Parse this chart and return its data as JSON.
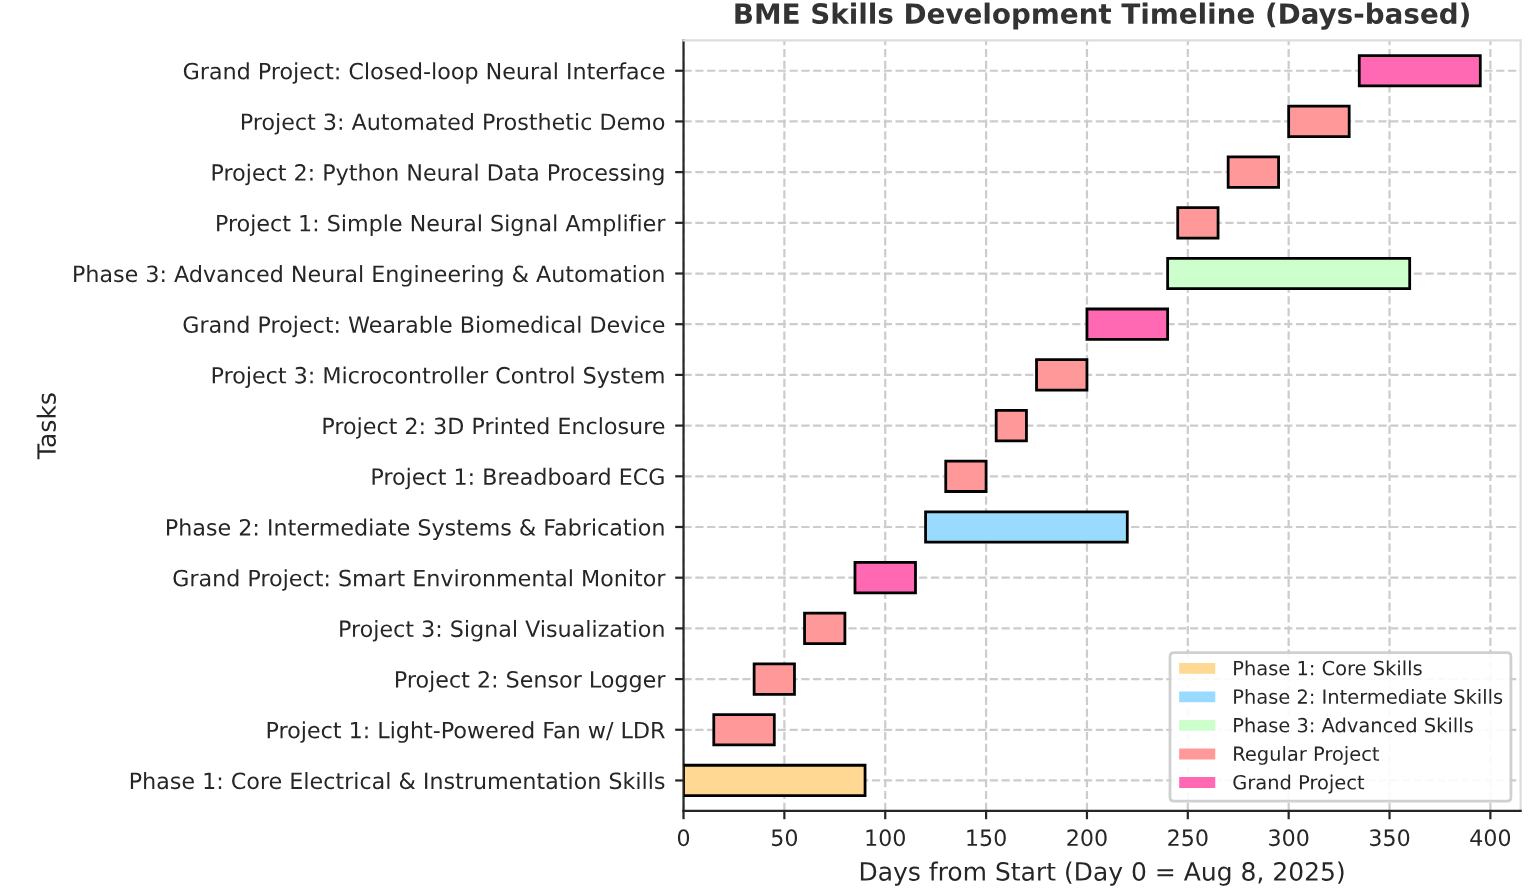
{
  "chart_data": {
    "type": "bar",
    "orientation": "horizontal",
    "title": "BME Skills Development Timeline (Days-based)",
    "xlabel": "Days from Start (Day 0 = Aug 8, 2025)",
    "ylabel": "Tasks",
    "categories": [
      "Grand Project: Closed-loop Neural Interface",
      "Project 3: Automated Prosthetic Demo",
      "Project 2: Python Neural Data Processing",
      "Project 1: Simple Neural Signal Amplifier",
      "Phase 3: Advanced Neural Engineering & Automation",
      "Grand Project: Wearable Biomedical Device",
      "Project 3: Microcontroller Control System",
      "Project 2: 3D Printed Enclosure",
      "Project 1: Breadboard ECG",
      "Phase 2: Intermediate Systems & Fabrication",
      "Grand Project: Smart Environmental Monitor",
      "Project 3: Signal Visualization",
      "Project 2: Sensor Logger",
      "Project 1: Light-Powered Fan w/ LDR",
      "Phase 1: Core Electrical & Instrumentation Skills"
    ],
    "series": [
      {
        "name": "Phase 1: Core Skills",
        "color": "#ffd993",
        "values": [
          null,
          null,
          null,
          null,
          null,
          null,
          null,
          null,
          null,
          null,
          null,
          null,
          null,
          null,
          90
        ],
        "base": [
          null,
          null,
          null,
          null,
          null,
          null,
          null,
          null,
          null,
          null,
          null,
          null,
          null,
          null,
          0
        ]
      },
      {
        "name": "Phase 2: Intermediate Skills",
        "color": "#99dbff",
        "values": [
          null,
          null,
          null,
          null,
          null,
          null,
          null,
          null,
          null,
          100,
          null,
          null,
          null,
          null,
          null
        ],
        "base": [
          null,
          null,
          null,
          null,
          null,
          null,
          null,
          null,
          null,
          120,
          null,
          null,
          null,
          null,
          null
        ]
      },
      {
        "name": "Phase 3: Advanced Skills",
        "color": "#ccffcc",
        "values": [
          null,
          null,
          null,
          null,
          120,
          null,
          null,
          null,
          null,
          null,
          null,
          null,
          null,
          null,
          null
        ],
        "base": [
          null,
          null,
          null,
          null,
          240,
          null,
          null,
          null,
          null,
          null,
          null,
          null,
          null,
          null,
          null
        ]
      },
      {
        "name": "Regular Project",
        "color": "#ff9999",
        "values": [
          null,
          30,
          25,
          20,
          null,
          null,
          25,
          15,
          20,
          null,
          null,
          20,
          20,
          30,
          null
        ],
        "base": [
          null,
          300,
          270,
          245,
          null,
          null,
          175,
          155,
          130,
          null,
          null,
          60,
          35,
          15,
          null
        ]
      },
      {
        "name": "Grand Project",
        "color": "#ff69b4",
        "values": [
          60,
          null,
          null,
          null,
          null,
          40,
          null,
          null,
          null,
          null,
          30,
          null,
          null,
          null,
          null
        ],
        "base": [
          335,
          null,
          null,
          null,
          null,
          200,
          null,
          null,
          null,
          null,
          85,
          null,
          null,
          null,
          null
        ]
      }
    ],
    "xlim": [
      0,
      415
    ],
    "xticks": [
      0,
      50,
      100,
      150,
      200,
      250,
      300,
      350,
      400
    ],
    "grid": true,
    "legend": "lower right"
  }
}
